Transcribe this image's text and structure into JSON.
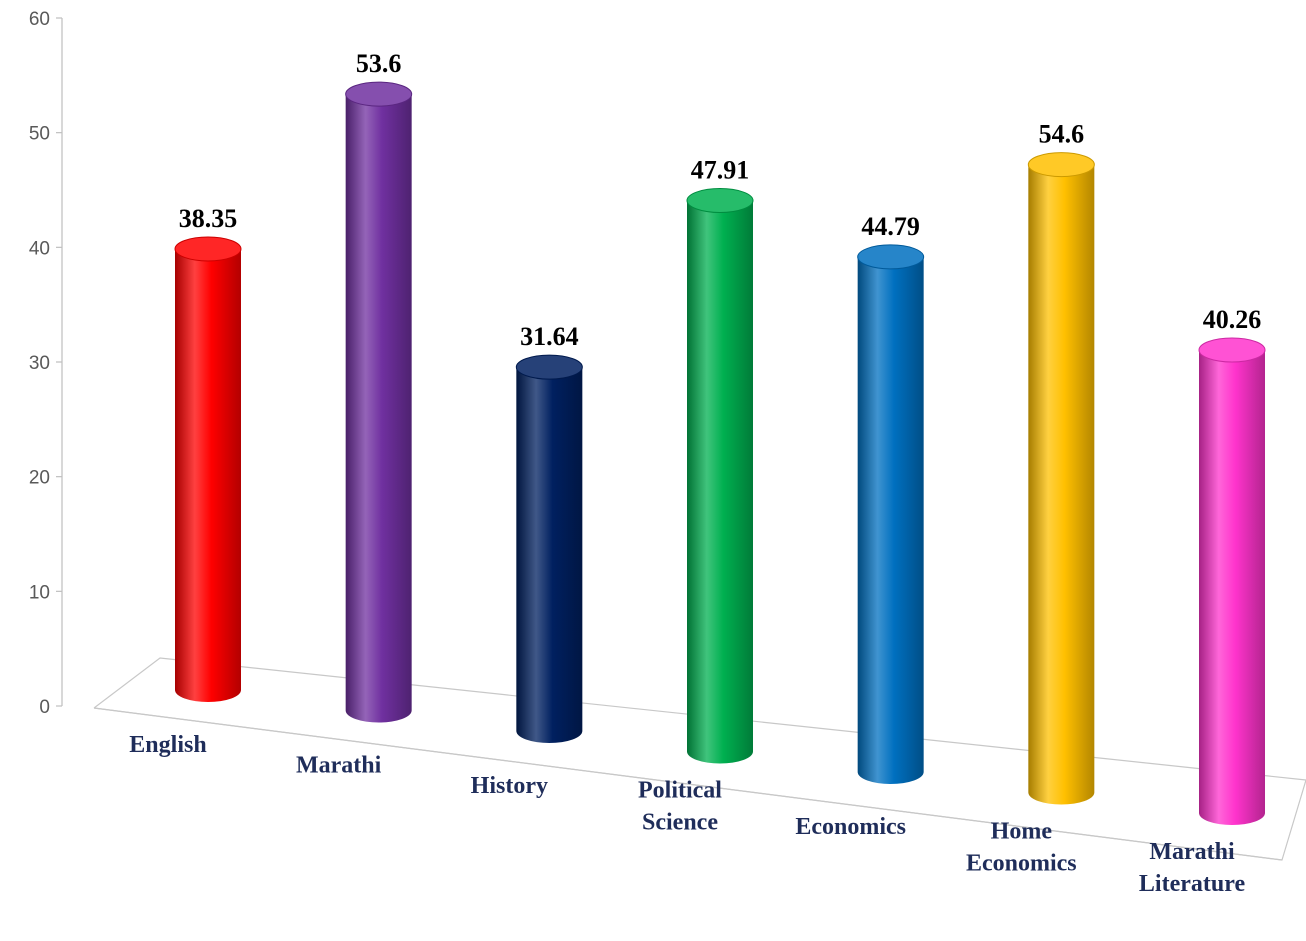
{
  "chart_data": {
    "type": "bar",
    "title": "",
    "xlabel": "",
    "ylabel": "",
    "ylim": [
      0,
      60
    ],
    "yticks": [
      0,
      10,
      20,
      30,
      40,
      50,
      60
    ],
    "grid": false,
    "legend": "none",
    "categories": [
      [
        "English"
      ],
      [
        "Marathi"
      ],
      [
        "History"
      ],
      [
        "Political",
        "Science"
      ],
      [
        "Economics"
      ],
      [
        "Home",
        "Economics"
      ],
      [
        "Marathi",
        "Literature"
      ]
    ],
    "values": [
      38.35,
      53.6,
      31.64,
      47.91,
      44.79,
      54.6,
      40.26
    ],
    "value_labels": [
      "38.35",
      "53.6",
      "31.64",
      "47.91",
      "44.79",
      "54.6",
      "40.26"
    ],
    "colors": [
      "#ff0000",
      "#7030a0",
      "#002060",
      "#00b050",
      "#0070c0",
      "#ffc000",
      "#ff33cc"
    ]
  }
}
